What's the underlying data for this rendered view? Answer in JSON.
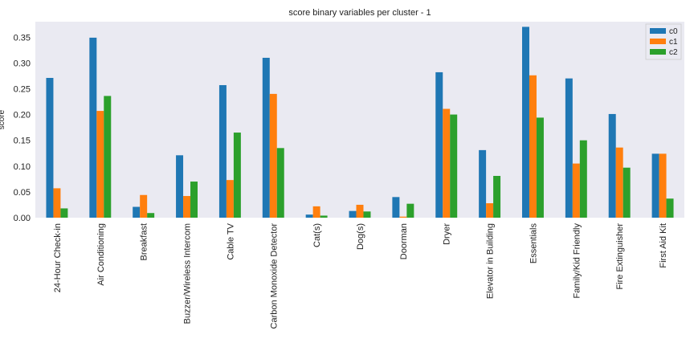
{
  "chart_data": {
    "type": "bar",
    "title": "score binary variables per cluster - 1",
    "xlabel": "",
    "ylabel": "score",
    "ylim": [
      0,
      0.38
    ],
    "yticks": [
      "0.00",
      "0.05",
      "0.10",
      "0.15",
      "0.20",
      "0.25",
      "0.30",
      "0.35"
    ],
    "ytick_values": [
      0,
      0.05,
      0.1,
      0.15,
      0.2,
      0.25,
      0.3,
      0.35
    ],
    "grid": false,
    "legend_position": "top-right",
    "categories": [
      "24-Hour Check-in",
      "Air Conditioning",
      "Breakfast",
      "Buzzer/Wireless Intercom",
      "Cable TV",
      "Carbon Monoxide Detector",
      "Cat(s)",
      "Dog(s)",
      "Doorman",
      "Dryer",
      "Elevator in Building",
      "Essentials",
      "Family/Kid Friendly",
      "Fire Extinguisher",
      "First Aid Kit"
    ],
    "series": [
      {
        "name": "c0",
        "color": "#1f77b4",
        "values": [
          0.271,
          0.349,
          0.021,
          0.121,
          0.257,
          0.31,
          0.006,
          0.013,
          0.04,
          0.282,
          0.131,
          0.37,
          0.27,
          0.201,
          0.124
        ]
      },
      {
        "name": "c1",
        "color": "#ff7f0e",
        "values": [
          0.057,
          0.207,
          0.044,
          0.042,
          0.073,
          0.24,
          0.022,
          0.025,
          0.002,
          0.211,
          0.028,
          0.276,
          0.105,
          0.136,
          0.124
        ]
      },
      {
        "name": "c2",
        "color": "#2ca02c",
        "values": [
          0.018,
          0.236,
          0.009,
          0.07,
          0.165,
          0.135,
          0.004,
          0.012,
          0.027,
          0.2,
          0.081,
          0.194,
          0.15,
          0.097,
          0.037
        ]
      }
    ],
    "colors": {
      "plot_background": "#eaeaf2",
      "page_background": "#ffffff"
    }
  }
}
